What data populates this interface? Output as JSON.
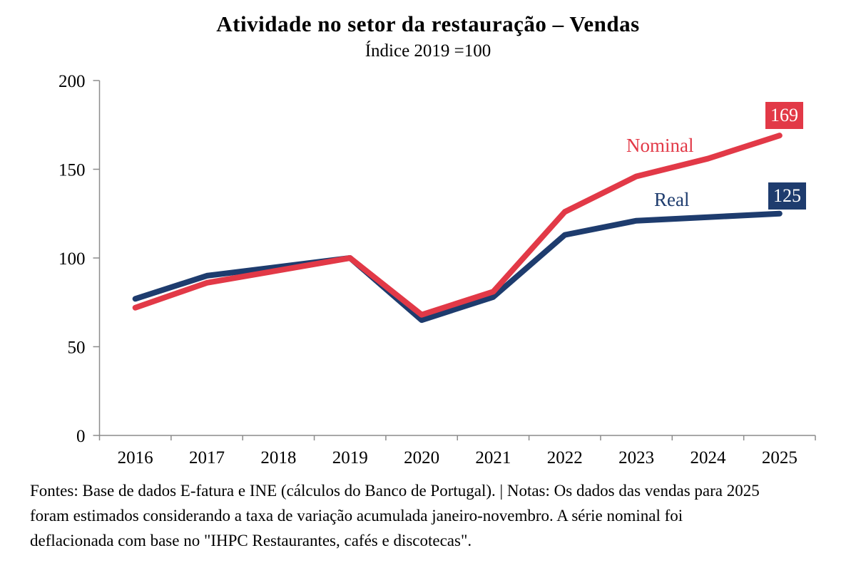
{
  "chart_data": {
    "type": "line",
    "title": "Atividade no setor da restauração – Vendas",
    "subtitle": "Índice 2019 =100",
    "categories": [
      "2016",
      "2017",
      "2018",
      "2019",
      "2020",
      "2021",
      "2022",
      "2023",
      "2024",
      "2025"
    ],
    "series": [
      {
        "name": "Nominal",
        "color": "#e23947",
        "values": [
          72,
          86,
          93,
          100,
          68,
          81,
          126,
          146,
          156,
          169
        ],
        "end_label": "169"
      },
      {
        "name": "Real",
        "color": "#1e3c6e",
        "values": [
          77,
          90,
          95,
          100,
          65,
          78,
          113,
          121,
          123,
          125
        ],
        "end_label": "125"
      }
    ],
    "xlabel": "",
    "ylabel": "",
    "ylim": [
      0,
      200
    ],
    "yticks": [
      0,
      50,
      100,
      150,
      200
    ],
    "grid": false,
    "axis_color": "#8c8c8c",
    "legend_position": "inline-series-labels"
  },
  "footnote": {
    "lines": [
      "Fontes: Base de dados E-fatura e INE (cálculos do Banco de Portugal). |  Notas: Os dados das vendas para 2025",
      "foram estimados considerando a taxa de variação acumulada janeiro-novembro. A série nominal foi",
      "deflacionada com base no \"IHPC Restaurantes, cafés e discotecas\"."
    ]
  }
}
